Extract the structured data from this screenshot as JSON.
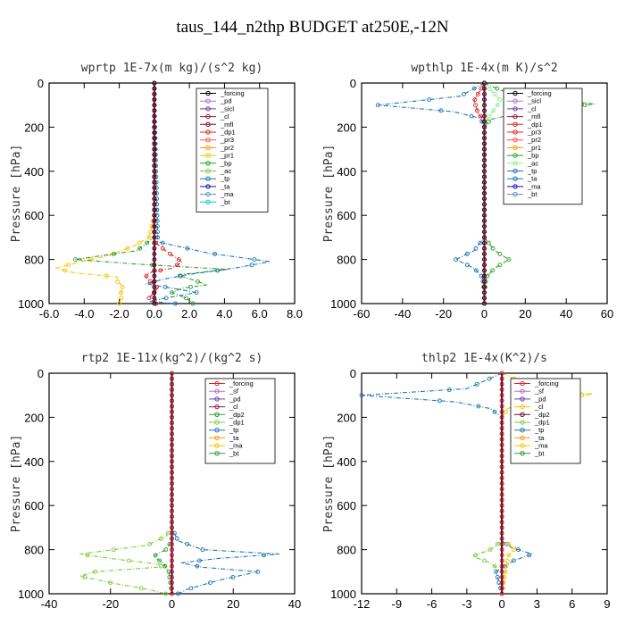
{
  "title": "taus_144_n2thp  BUDGET at250E,-12N",
  "chart_data": [
    {
      "id": "wprtp",
      "type": "line",
      "title": "wprtp   1E-7x(m kg)/(s^2 kg)",
      "ylabel": "Pressure [hPa]",
      "xlim": [
        -6,
        8
      ],
      "xticks": [
        "-6.0",
        "-4.0",
        "-2.0",
        "0.0",
        "2.0",
        "4.0",
        "6.0",
        "8.0"
      ],
      "ylim": [
        1000,
        0
      ],
      "yticks": [
        "0",
        "200",
        "400",
        "600",
        "800",
        "1000"
      ],
      "legend": [
        "_forcing",
        "_pd",
        "_sicl",
        "_cl",
        "_mfl",
        "_dp1",
        "_pr3",
        "_pr2",
        "_pr1",
        "_bp",
        "_ac",
        "_tp",
        "_ta",
        "_ma",
        "_bt"
      ],
      "legend_position": "top-right",
      "series": [
        {
          "name": "_pr1",
          "color": "#f5c400",
          "x": [
            0,
            0,
            0,
            -0.3,
            -1.2,
            -2.5,
            -4.2,
            -5.6,
            -4.6,
            -2.1,
            -2.1,
            -1.8,
            -1.9,
            -1.9,
            -2.0
          ],
          "y": [
            0,
            100,
            600,
            700,
            740,
            780,
            810,
            840,
            860,
            880,
            900,
            920,
            950,
            975,
            1000
          ]
        },
        {
          "name": "_bp",
          "color": "#2ca02c",
          "x": [
            0,
            0,
            0,
            -1.0,
            -4.5,
            -1.2,
            4.2,
            1.3,
            2.3,
            3.0,
            1.6,
            1.0,
            1.8,
            2.2
          ],
          "y": [
            0,
            100,
            700,
            760,
            800,
            820,
            845,
            870,
            895,
            915,
            930,
            950,
            975,
            1000
          ]
        },
        {
          "name": "_tp",
          "color": "#1f77b4",
          "x": [
            0,
            0,
            0.2,
            3.0,
            6.6,
            4.5,
            1.8,
            0.5,
            -0.5,
            1.0,
            2.4,
            1.0,
            -0.3,
            1.2
          ],
          "y": [
            0,
            100,
            720,
            770,
            810,
            840,
            870,
            890,
            910,
            930,
            950,
            970,
            990,
            1000
          ]
        },
        {
          "name": "_dp1",
          "color": "#d62728",
          "x": [
            0,
            0,
            0,
            0.8,
            1.6,
            1.0,
            -0.3,
            -0.5,
            0.2,
            -0.3,
            0.1
          ],
          "y": [
            0,
            100,
            720,
            770,
            810,
            840,
            860,
            880,
            930,
            975,
            1000
          ]
        },
        {
          "name": "_forcing",
          "color": "#000000",
          "x": [
            0,
            0
          ],
          "y": [
            0,
            1000
          ]
        }
      ]
    },
    {
      "id": "wpthlp",
      "type": "line",
      "title": "wpthlp   1E-4x(m K)/s^2",
      "ylabel": "Pressure [hPa]",
      "xlim": [
        -60,
        60
      ],
      "xticks": [
        "-60",
        "-40",
        "-20",
        "0",
        "20",
        "40",
        "60"
      ],
      "ylim": [
        1000,
        0
      ],
      "yticks": [
        "0",
        "200",
        "400",
        "600",
        "800",
        "1000"
      ],
      "legend": [
        "_forcing",
        "_sicl",
        "_cl",
        "_mfl",
        "_dp1",
        "_pr3",
        "_pr2",
        "_pr1",
        "_bp",
        "_ac",
        "_tp",
        "_ta",
        "_ma",
        "_bt"
      ],
      "legend_position": "top-right",
      "series": [
        {
          "name": "_tp",
          "color": "#1f77b4",
          "x": [
            0,
            -12,
            -52,
            -15,
            -2,
            0,
            0,
            -5,
            -14,
            -5,
            -1,
            0,
            0
          ],
          "y": [
            0,
            60,
            100,
            130,
            160,
            200,
            700,
            760,
            800,
            840,
            880,
            950,
            1000
          ]
        },
        {
          "name": "_bp",
          "color": "#2ca02c",
          "x": [
            0,
            15,
            54,
            20,
            3,
            0,
            0,
            5,
            12,
            5,
            1,
            0,
            0
          ],
          "y": [
            0,
            60,
            95,
            130,
            165,
            200,
            700,
            760,
            800,
            840,
            880,
            950,
            1000
          ]
        },
        {
          "name": "_dp1",
          "color": "#d62728",
          "x": [
            0,
            -5,
            -4,
            -3,
            0,
            0
          ],
          "y": [
            0,
            80,
            110,
            140,
            170,
            1000
          ]
        },
        {
          "name": "_ac",
          "color": "#90ee90",
          "x": [
            0,
            8,
            4,
            0,
            0
          ],
          "y": [
            0,
            80,
            130,
            180,
            1000
          ]
        },
        {
          "name": "_forcing",
          "color": "#000000",
          "x": [
            0,
            0
          ],
          "y": [
            0,
            1000
          ]
        }
      ]
    },
    {
      "id": "rtp2",
      "type": "line",
      "title": "rtp2   1E-11x(kg^2)/(kg^2 s)",
      "ylabel": "Pressure [hPa]",
      "xlim": [
        -40,
        40
      ],
      "xticks": [
        "-40",
        "-20",
        "0",
        "20",
        "40"
      ],
      "ylim": [
        1000,
        0
      ],
      "yticks": [
        "0",
        "200",
        "400",
        "600",
        "800",
        "1000"
      ],
      "legend": [
        "_forcing",
        "_sf",
        "_pd",
        "_cl",
        "_dp2",
        "_dp1",
        "_tp",
        "_ta",
        "_ma",
        "_bt"
      ],
      "legend_position": "top-right",
      "series": [
        {
          "name": "_dp1",
          "color": "#7ccd3a",
          "x": [
            0,
            0,
            -2,
            -8,
            -30,
            -20,
            -8,
            -2,
            -5,
            -25,
            -30,
            -20,
            -8,
            -2
          ],
          "y": [
            0,
            700,
            740,
            780,
            820,
            840,
            860,
            870,
            880,
            900,
            920,
            950,
            980,
            1000
          ]
        },
        {
          "name": "_tp",
          "color": "#1f77b4",
          "x": [
            0,
            0,
            2,
            10,
            35,
            15,
            3,
            10,
            28,
            15,
            5,
            2
          ],
          "y": [
            0,
            700,
            760,
            800,
            820,
            840,
            860,
            880,
            900,
            940,
            980,
            1000
          ]
        },
        {
          "name": "_dp2",
          "color": "#2ca02c",
          "x": [
            0,
            0,
            -2,
            -6,
            -3,
            -1,
            0
          ],
          "y": [
            0,
            760,
            800,
            830,
            860,
            900,
            1000
          ]
        },
        {
          "name": "_forcing",
          "color": "#d62728",
          "x": [
            0,
            0
          ],
          "y": [
            0,
            1000
          ]
        }
      ]
    },
    {
      "id": "thlp2",
      "type": "line",
      "title": "thlp2   1E-4x(K^2)/s",
      "ylabel": "Pressure [hPa]",
      "xlim": [
        -12,
        9
      ],
      "xticks": [
        "-12",
        "-9",
        "-6",
        "-3",
        "0",
        "3",
        "6",
        "9"
      ],
      "ylim": [
        1000,
        0
      ],
      "yticks": [
        "0",
        "200",
        "400",
        "600",
        "800",
        "1000"
      ],
      "legend": [
        "_forcing",
        "_sf",
        "_pd",
        "_cl",
        "_dp2",
        "_dp1",
        "_tp",
        "_ta",
        "_ma",
        "_bt"
      ],
      "legend_position": "top-right",
      "series": [
        {
          "name": "_tp",
          "color": "#1f77b4",
          "x": [
            0,
            -3,
            -12,
            -4,
            -1,
            0,
            0,
            0.8,
            2.6,
            1.0,
            -0.5,
            0
          ],
          "y": [
            0,
            70,
            100,
            130,
            160,
            200,
            760,
            790,
            820,
            850,
            900,
            1000
          ]
        },
        {
          "name": "_cl",
          "color": "#f5c400",
          "x": [
            0,
            3,
            7.8,
            3,
            0.5,
            0,
            0,
            1.2,
            0.5,
            0
          ],
          "y": [
            0,
            70,
            95,
            120,
            160,
            200,
            760,
            790,
            830,
            1000
          ]
        },
        {
          "name": "_dp1",
          "color": "#7ccd3a",
          "x": [
            0,
            0,
            -1,
            -2.5,
            -1,
            0,
            0
          ],
          "y": [
            0,
            760,
            800,
            830,
            860,
            900,
            1000
          ]
        },
        {
          "name": "_forcing",
          "color": "#d62728",
          "x": [
            0,
            0
          ],
          "y": [
            0,
            1000
          ]
        }
      ]
    }
  ]
}
